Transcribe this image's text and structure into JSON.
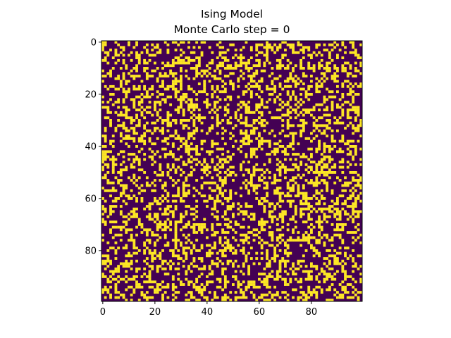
{
  "chart_data": {
    "type": "heatmap",
    "title_line1": "Ising Model",
    "title_line2": "Monte Carlo step = 0",
    "xlabel": "",
    "ylabel": "",
    "grid_size": 100,
    "xlim": [
      -0.5,
      99.5
    ],
    "ylim": [
      99.5,
      -0.5
    ],
    "xticks": [
      0,
      20,
      40,
      60,
      80
    ],
    "yticks": [
      0,
      20,
      40,
      60,
      80
    ],
    "colormap": "viridis",
    "values": [
      "-1 (spin down)",
      "+1 (spin up)"
    ],
    "colors": {
      "spin_down": "#440154",
      "spin_up": "#fde725"
    },
    "spin_up_fraction": 0.33,
    "grid": false
  }
}
